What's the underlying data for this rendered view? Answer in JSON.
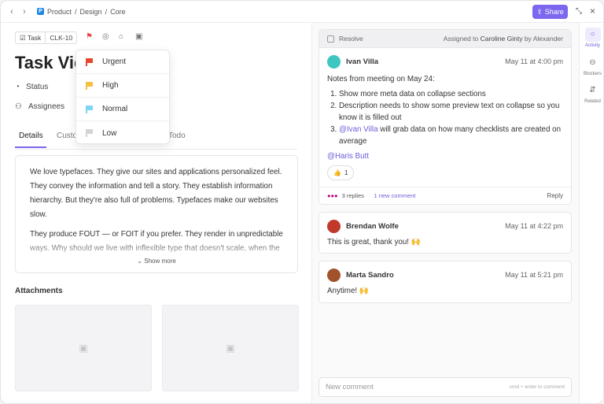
{
  "breadcrumb": {
    "space_badge": "P",
    "items": [
      "Product",
      "Design",
      "Core"
    ],
    "separator": "/"
  },
  "header": {
    "share_label": "Share",
    "share_icon": "share-icon",
    "expand_icon": "expand-icon",
    "close_icon": "close-icon"
  },
  "task": {
    "type_label": "Task",
    "id": "CLK-10",
    "title": "Task View",
    "priority_color": "#e5484d"
  },
  "properties": [
    {
      "icon": "status-icon",
      "label": "Status"
    },
    {
      "icon": "user-icon",
      "label": "Assignees"
    }
  ],
  "tabs": [
    {
      "label": "Details",
      "active": true
    },
    {
      "label": "Custom Fields"
    },
    {
      "label": "Todo"
    }
  ],
  "tab_labels_visible": {
    "custom": "Custo",
    "todo": "Todo"
  },
  "priority_menu": [
    {
      "label": "Urgent",
      "color": "#e5482f"
    },
    {
      "label": "High",
      "color": "#f5c044"
    },
    {
      "label": "Normal",
      "color": "#7fd3f7"
    },
    {
      "label": "Low",
      "color": "#d4d4d8"
    }
  ],
  "description": {
    "paragraphs": [
      "We love typefaces. They give our sites and applications personalized feel. They convey the information and tell a story. They establish information hierarchy. But they're also full of problems. Typefaces make our websites slow.",
      "They produce FOUT — or FOIT if you prefer. They render in unpredictable ways. Why should we live with inflexible type that doesn't scale, when the"
    ],
    "show_more": "Show more"
  },
  "attachments": {
    "label": "Attachments"
  },
  "activity": {
    "resolve_label": "Resolve",
    "assigned_prefix": "Assigned to",
    "assignee": "Caroline Ginty",
    "assigned_by_prefix": "by",
    "assigned_by": "Alexander",
    "comments": [
      {
        "author": "Ivan Villa",
        "time": "May 11 at 4:00 pm",
        "intro": "Notes from meeting on May 24:",
        "list": [
          "Show more meta data on collapse sections",
          "Description needs to show some preview text on collapse so you know it is filled out"
        ],
        "item3_mention": "@Ivan Villa",
        "item3_text": " will grab data on how many checklists are created on average",
        "mention": "@Haris Butt",
        "reaction": "👍",
        "reaction_count": "1",
        "replies": "3 replies",
        "new_comment": "1 new comment",
        "reply_label": "Reply",
        "avatar_color": "#3ec6c0"
      },
      {
        "author": "Brendan Wolfe",
        "time": "May 11 at 4:22 pm",
        "text": "This is great, thank you! 🙌",
        "avatar_color": "#c0392b"
      },
      {
        "author": "Marta Sandro",
        "time": "May 11 at 5:21 pm",
        "text": "Anytime! 🙌",
        "avatar_color": "#a0522d"
      }
    ],
    "new_comment_placeholder": "New comment",
    "new_comment_hint": "cmd + enter to comment"
  },
  "rail": [
    {
      "label": "Activity",
      "active": true
    },
    {
      "label": "Blockers"
    },
    {
      "label": "Related"
    }
  ],
  "accent": "#7b68ee"
}
